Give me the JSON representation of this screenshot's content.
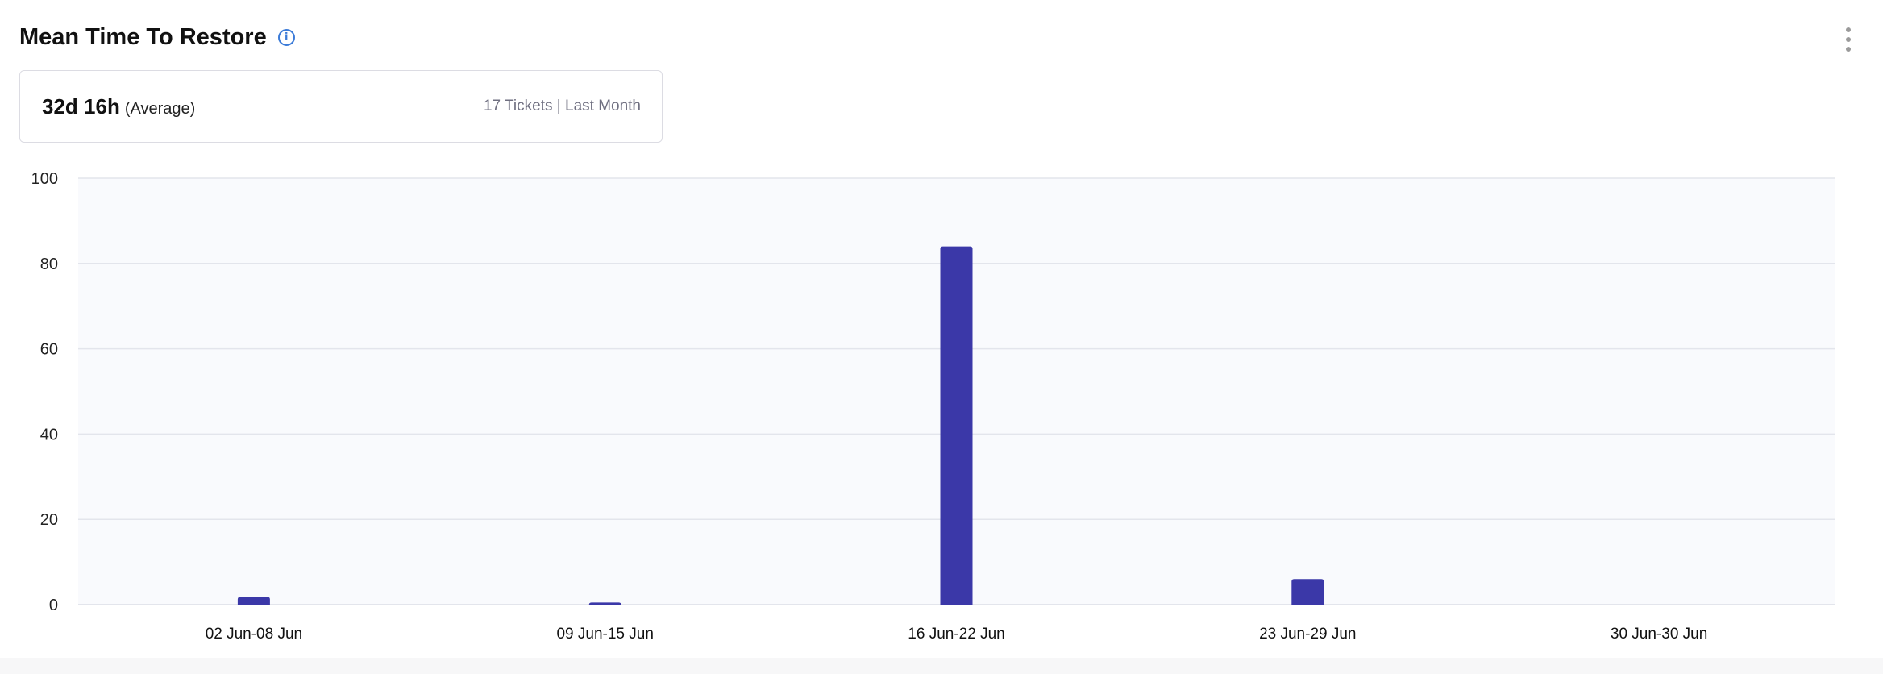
{
  "header": {
    "title": "Mean Time To Restore",
    "info_icon": "info-icon",
    "menu_icon": "kebab-menu-icon"
  },
  "summary": {
    "value": "32d 16h",
    "value_label": "(Average)",
    "tickets": "17 Tickets",
    "separator": "|",
    "period": "Last Month"
  },
  "chart_data": {
    "type": "bar",
    "title": "",
    "xlabel": "",
    "ylabel": "",
    "categories": [
      "02 Jun-08 Jun",
      "09 Jun-15 Jun",
      "16 Jun-22 Jun",
      "23 Jun-29 Jun",
      "30 Jun-30 Jun"
    ],
    "values": [
      1.8,
      0.5,
      84,
      6,
      0
    ],
    "ylim": [
      0,
      100
    ],
    "yticks": [
      0,
      20,
      40,
      60,
      80,
      100
    ],
    "grid": true,
    "colors": {
      "bar": "#3b38a8",
      "plot_bg": "#f9fafd",
      "grid": "#e3e5ec"
    }
  }
}
